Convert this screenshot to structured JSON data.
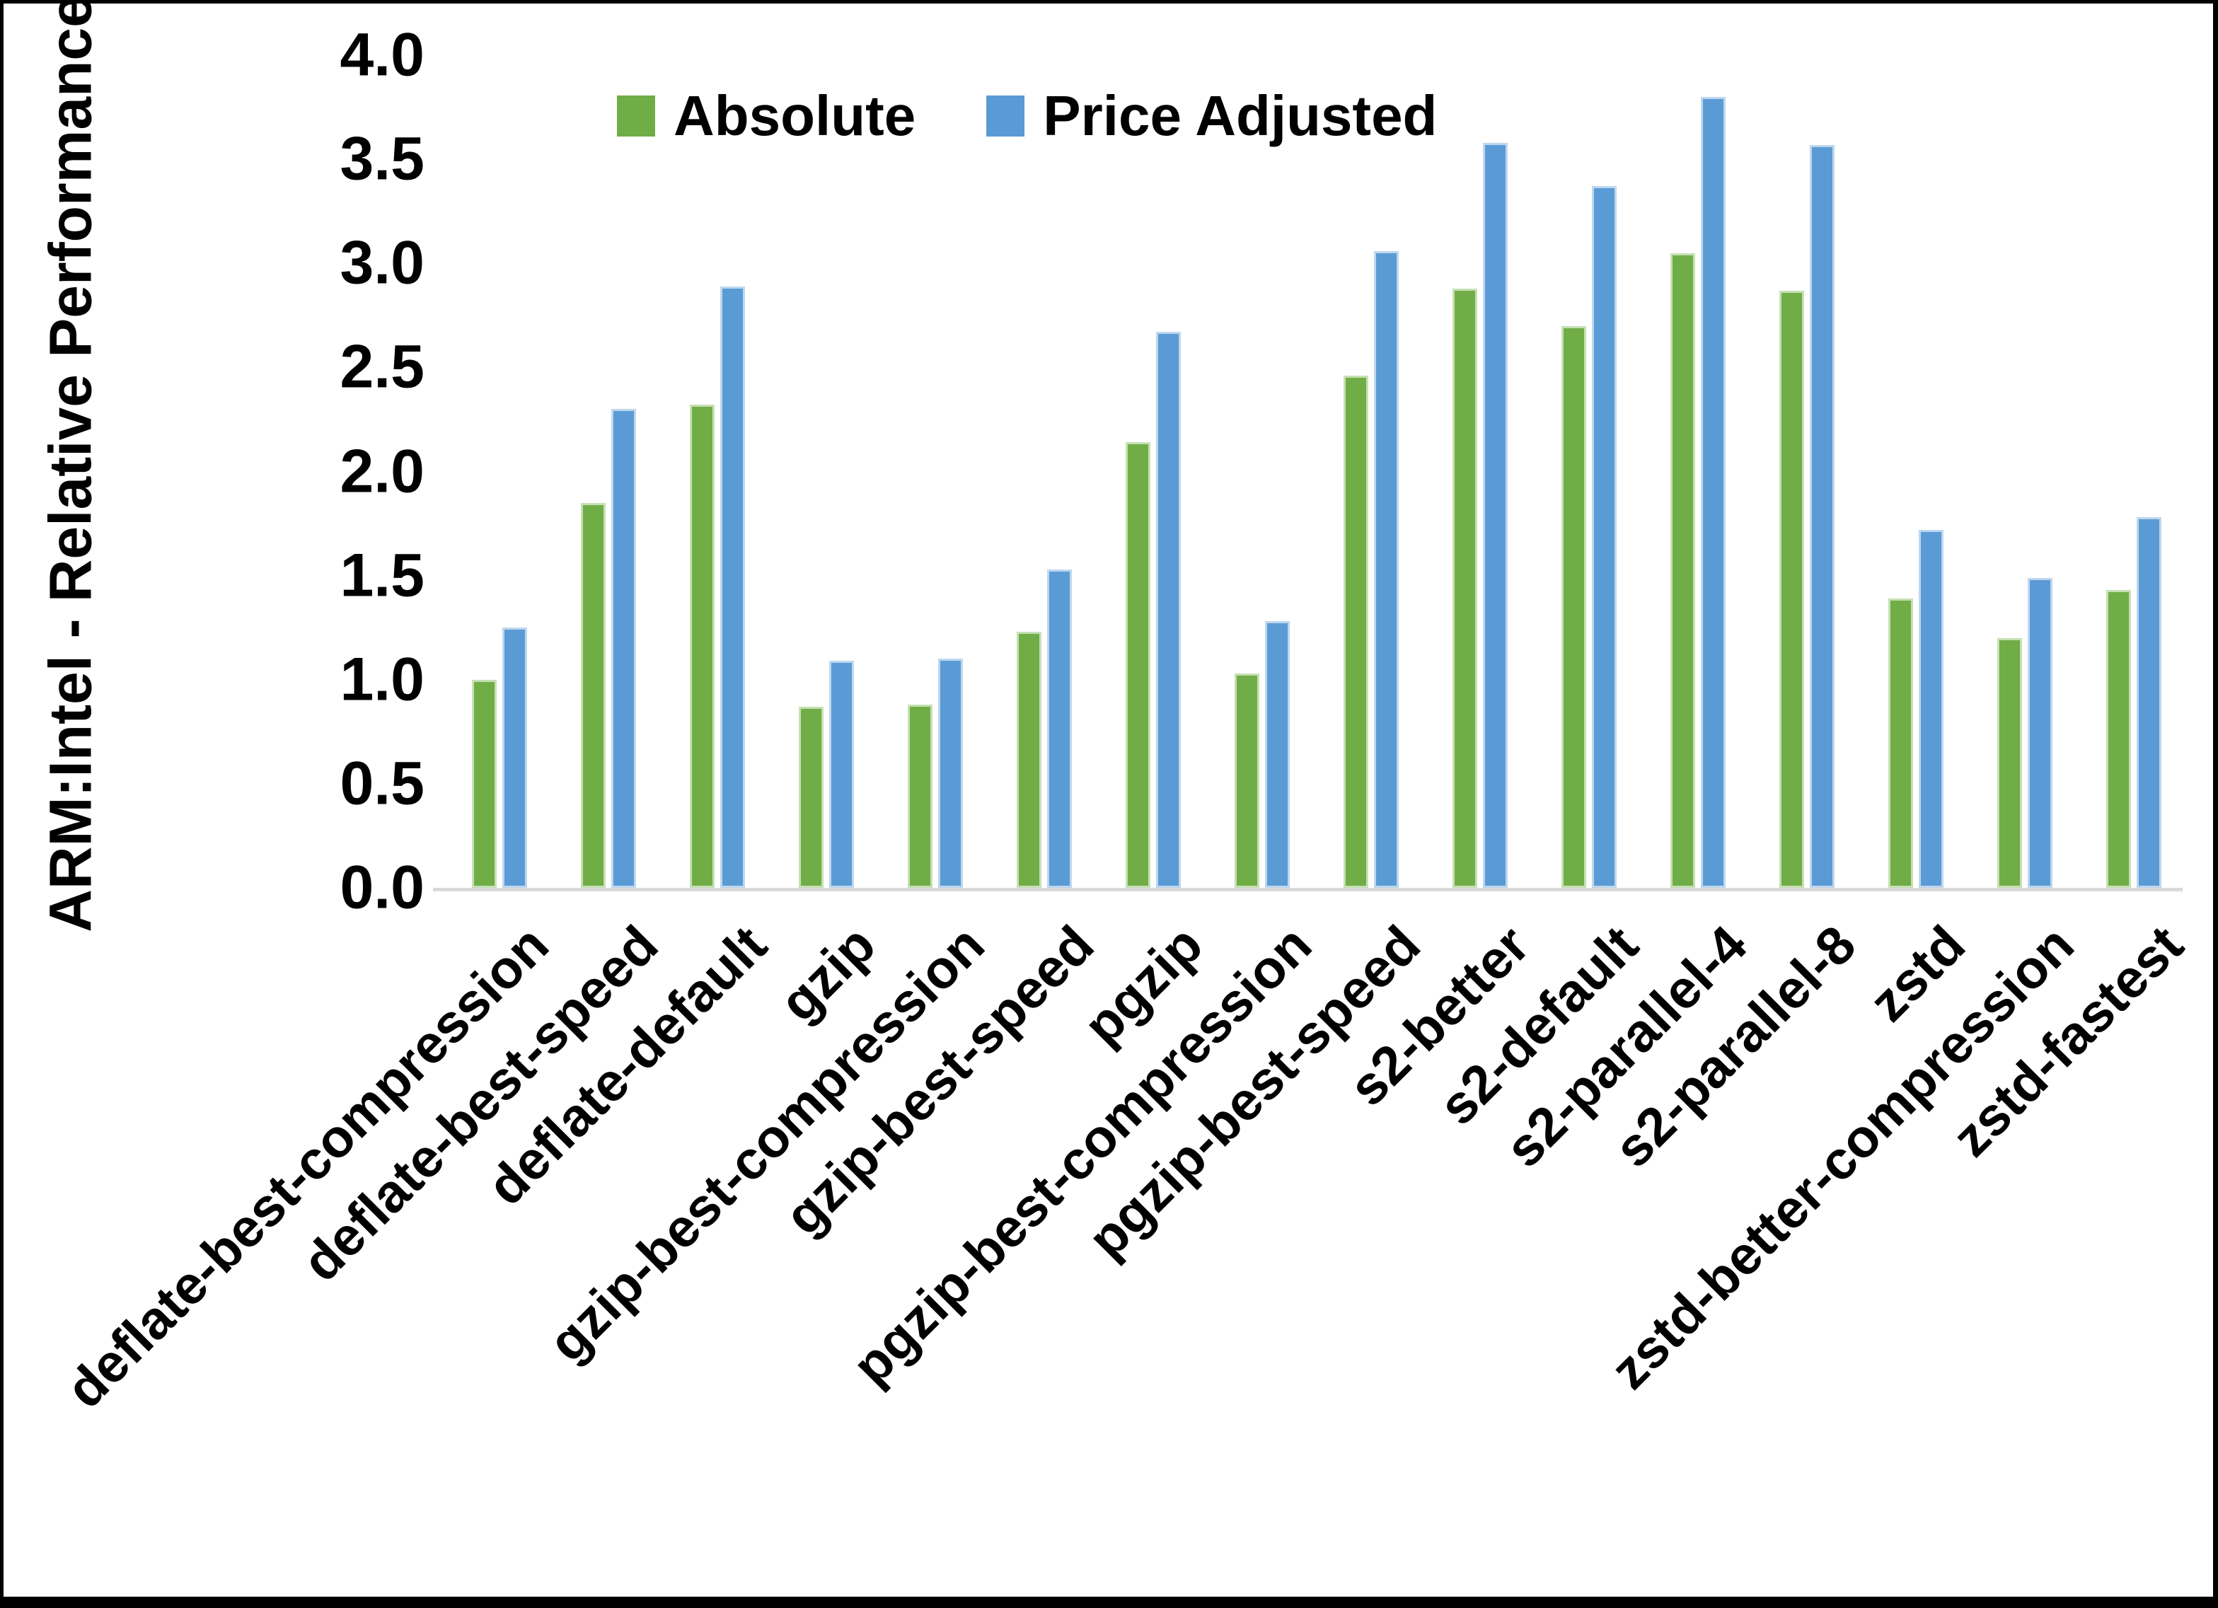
{
  "chart_data": {
    "type": "bar",
    "title": "",
    "xlabel": "",
    "ylabel": "ARM:Intel - Relative Performance",
    "ylim": [
      0.0,
      4.0
    ],
    "ytick_step": 0.5,
    "ytick_labels": [
      "0.0",
      "0.5",
      "1.0",
      "1.5",
      "2.0",
      "2.5",
      "3.0",
      "3.5",
      "4.0"
    ],
    "grid": false,
    "legend_position": "top-center-inside",
    "categories": [
      "deflate-best-compression",
      "deflate-best-speed",
      "deflate-default",
      "gzip",
      "gzip-best-compression",
      "gzip-best-speed",
      "pgzip",
      "pgzip-best-compression",
      "pgzip-best-speed",
      "s2-better",
      "s2-default",
      "s2-parallel-4",
      "s2-parallel-8",
      "zstd",
      "zstd-better-compression",
      "zstd-fastest"
    ],
    "series": [
      {
        "name": "Absolute",
        "color": "#70AD47",
        "edge_color": "#C6E0B4",
        "values": [
          1.0,
          1.85,
          2.32,
          0.87,
          0.88,
          1.23,
          2.14,
          1.03,
          2.46,
          2.88,
          2.7,
          3.05,
          2.87,
          1.39,
          1.2,
          1.43
        ]
      },
      {
        "name": "Price Adjusted",
        "color": "#5B9BD5",
        "edge_color": "#BDD7EE",
        "values": [
          1.25,
          2.3,
          2.89,
          1.09,
          1.1,
          1.53,
          2.67,
          1.28,
          3.06,
          3.58,
          3.37,
          3.8,
          3.57,
          1.72,
          1.49,
          1.78
        ]
      }
    ],
    "colors": {
      "axis_line": "#D9D9D9",
      "text": "#000000",
      "background": "#FFFFFF",
      "frame": "#000000"
    }
  }
}
